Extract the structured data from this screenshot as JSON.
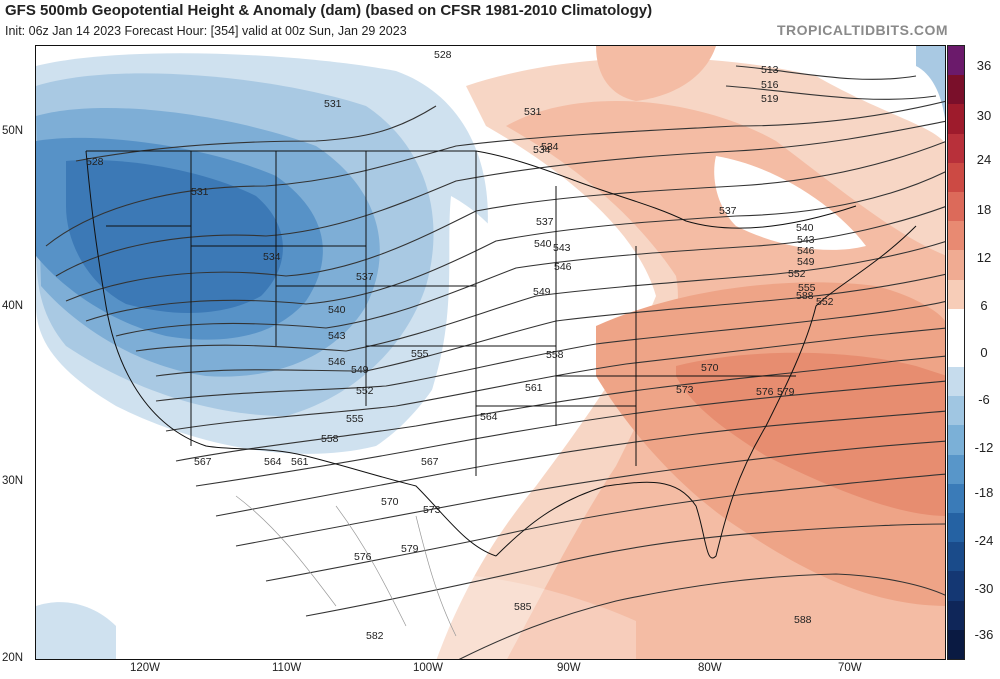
{
  "header": {
    "title": "GFS 500mb Geopotential Height & Anomaly (dam) (based on CFSR 1981-2010 Climatology)",
    "subtitle": "Init: 06z Jan 14 2023   Forecast Hour: [354]   valid at 00z Sun, Jan 29 2023",
    "brand": "TROPICALTIDBITS.COM"
  },
  "axes": {
    "latitudes": [
      "50N",
      "40N",
      "30N",
      "20N"
    ],
    "longitudes": [
      "120W",
      "110W",
      "100W",
      "90W",
      "80W",
      "70W"
    ]
  },
  "colorbar": {
    "labels": [
      "36",
      "30",
      "24",
      "18",
      "12",
      "6",
      "0",
      "-6",
      "-12",
      "-18",
      "-24",
      "-30",
      "-36"
    ],
    "colors": [
      "#6b1a6b",
      "#7a0f2a",
      "#9e1b2c",
      "#b8303a",
      "#cc4a44",
      "#dc6a5a",
      "#e88a72",
      "#f0ab92",
      "#f7cdb8",
      "#ffffff",
      "#ffffff",
      "#c6dced",
      "#a0c6e2",
      "#7bb0d7",
      "#5896c9",
      "#3a7bb8",
      "#2562a3",
      "#1a4b8a",
      "#143773",
      "#0f2659",
      "#0a1a42"
    ]
  },
  "contour_labels": [
    "528",
    "531",
    "534",
    "537",
    "540",
    "543",
    "546",
    "549",
    "552",
    "555",
    "558",
    "561",
    "564",
    "567",
    "570",
    "573",
    "576",
    "579",
    "582",
    "585",
    "588",
    "513",
    "516",
    "519"
  ],
  "contour_label_items": [
    {
      "t": "528"
    },
    {
      "t": "531"
    },
    {
      "t": "534"
    },
    {
      "t": "537"
    },
    {
      "t": "540"
    },
    {
      "t": "543"
    },
    {
      "t": "546"
    },
    {
      "t": "549"
    },
    {
      "t": "552"
    },
    {
      "t": "555"
    },
    {
      "t": "558"
    },
    {
      "t": "561"
    },
    {
      "t": "564"
    },
    {
      "t": "567"
    },
    {
      "t": "570"
    },
    {
      "t": "573"
    },
    {
      "t": "576"
    },
    {
      "t": "579"
    },
    {
      "t": "582"
    },
    {
      "t": "585"
    },
    {
      "t": "588"
    },
    {
      "t": "528"
    },
    {
      "t": "531"
    },
    {
      "t": "534"
    },
    {
      "t": "537"
    },
    {
      "t": "540"
    },
    {
      "t": "543"
    },
    {
      "t": "546"
    },
    {
      "t": "549"
    },
    {
      "t": "552"
    },
    {
      "t": "555"
    },
    {
      "t": "558"
    },
    {
      "t": "561"
    },
    {
      "t": "564"
    },
    {
      "t": "567"
    },
    {
      "t": "570"
    },
    {
      "t": "573"
    },
    {
      "t": "576"
    },
    {
      "t": "579"
    },
    {
      "t": "513"
    },
    {
      "t": "516"
    },
    {
      "t": "519"
    },
    {
      "t": "531"
    },
    {
      "t": "534"
    },
    {
      "t": "537"
    },
    {
      "t": "540"
    },
    {
      "t": "543"
    },
    {
      "t": "546"
    },
    {
      "t": "549"
    },
    {
      "t": "552"
    },
    {
      "t": "555"
    },
    {
      "t": "588"
    }
  ]
}
